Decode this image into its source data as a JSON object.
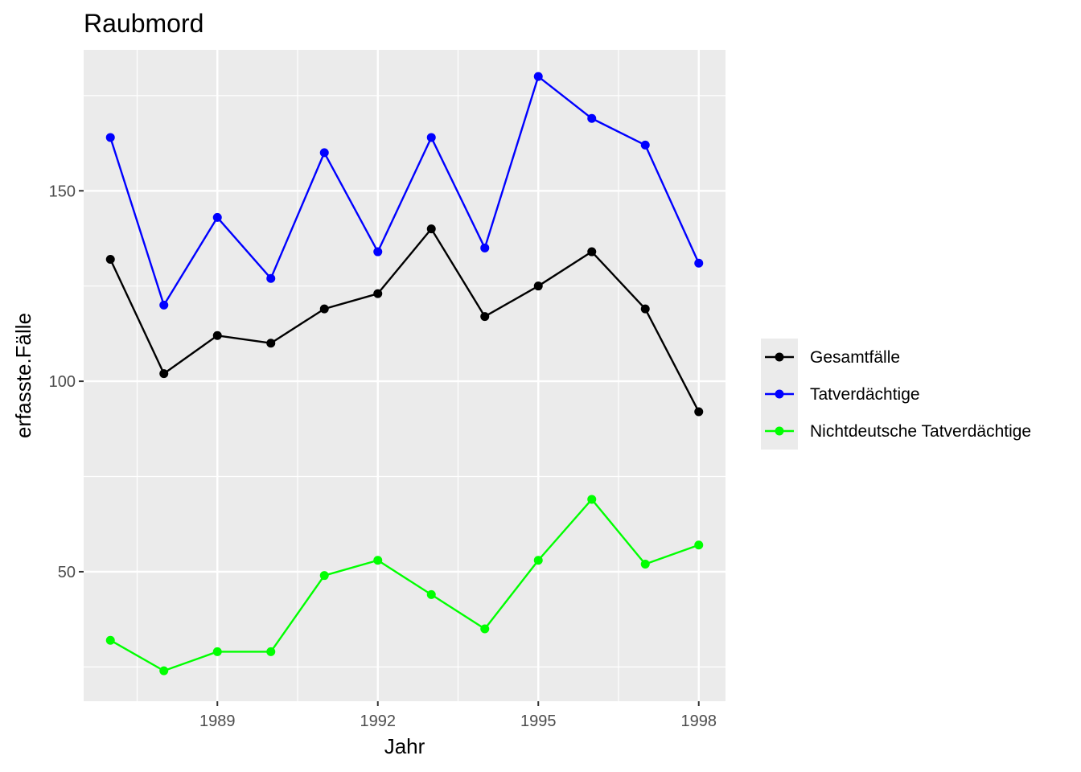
{
  "chart_data": {
    "type": "line",
    "title": "Raubmord",
    "xlabel": "Jahr",
    "ylabel": "erfasste.Fälle",
    "x": [
      1987,
      1988,
      1989,
      1990,
      1991,
      1992,
      1993,
      1994,
      1995,
      1996,
      1997,
      1998
    ],
    "xticks": [
      1989,
      1992,
      1995,
      1998
    ],
    "xlim": [
      1986.5,
      1998.5
    ],
    "yticks": [
      50,
      100,
      150
    ],
    "ylim": [
      16,
      187
    ],
    "grid": true,
    "legend_position": "right",
    "series": [
      {
        "name": "Gesamtfälle",
        "color": "#000000",
        "values": [
          132,
          102,
          112,
          110,
          119,
          123,
          140,
          117,
          125,
          134,
          119,
          92
        ]
      },
      {
        "name": "Tatverdächtige",
        "color": "#0000ff",
        "values": [
          164,
          120,
          143,
          127,
          160,
          134,
          164,
          135,
          180,
          169,
          162,
          131
        ]
      },
      {
        "name": "Nichtdeutsche Tatverdächtige",
        "color": "#00ff00",
        "values": [
          32,
          24,
          29,
          29,
          49,
          53,
          44,
          35,
          53,
          69,
          52,
          57
        ]
      }
    ]
  }
}
